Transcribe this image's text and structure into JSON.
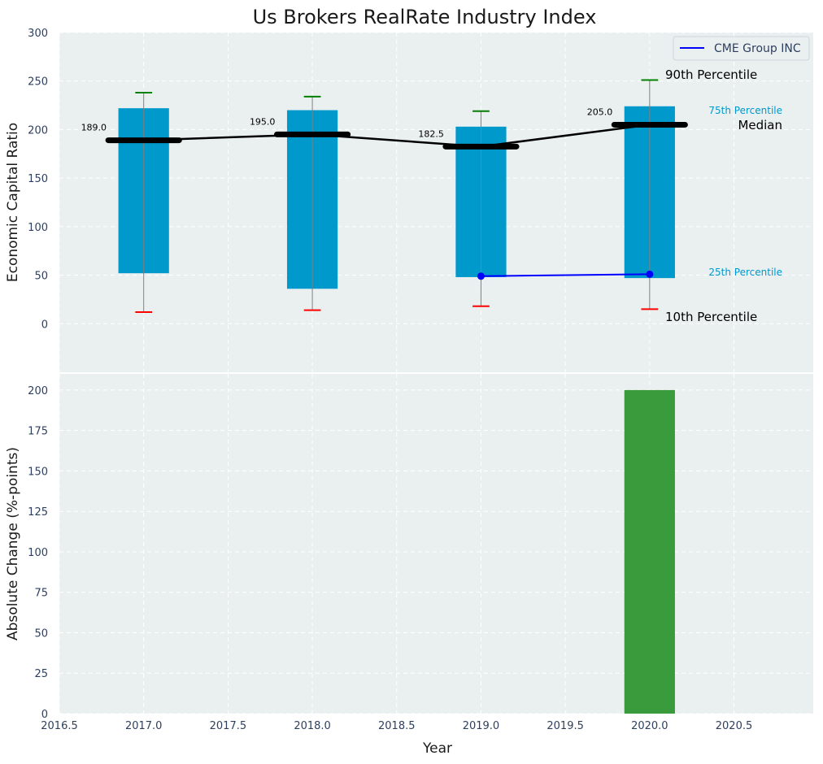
{
  "chart_data": [
    {
      "type": "box",
      "title": "Us Brokers RealRate Industry Index",
      "xlabel": "",
      "ylabel": "Economic Capital Ratio",
      "ylim": [
        -50,
        300
      ],
      "yticks": [
        0,
        50,
        100,
        150,
        200,
        250,
        300
      ],
      "grid": true,
      "legend_position": "top-right",
      "boxes": [
        {
          "x": 2017,
          "p10": 12,
          "p25": 52,
          "median": 189,
          "p75": 222,
          "p90": 238,
          "median_label": "189.0"
        },
        {
          "x": 2018,
          "p10": 14,
          "p25": 36,
          "median": 195,
          "p75": 220,
          "p90": 234,
          "median_label": "195.0"
        },
        {
          "x": 2019,
          "p10": 18,
          "p25": 48,
          "median": 182.5,
          "p75": 203,
          "p90": 219,
          "median_label": "182.5"
        },
        {
          "x": 2020,
          "p10": 15,
          "p25": 47,
          "median": 205,
          "p75": 224,
          "p90": 251,
          "median_label": "205.0"
        }
      ],
      "series": [
        {
          "name": "CME Group INC",
          "color": "#0000ff",
          "x": [
            2019,
            2020
          ],
          "values": [
            49,
            51
          ]
        }
      ],
      "annotations": {
        "p90": "90th Percentile",
        "p75": "75th Percentile",
        "median": "Median",
        "p25": "25th Percentile",
        "p10": "10th Percentile"
      }
    },
    {
      "type": "bar",
      "xlabel": "Year",
      "ylabel": "Absolute Change (%-points)",
      "ylim": [
        0,
        210
      ],
      "yticks": [
        0,
        25,
        50,
        75,
        100,
        125,
        150,
        175,
        200
      ],
      "grid": true,
      "categories": [
        2020
      ],
      "values": [
        200
      ],
      "color": "#3a9b3c"
    }
  ],
  "x_axis": {
    "xlim": [
      2016.5,
      2020.97
    ],
    "ticks": [
      2016.5,
      2017.0,
      2017.5,
      2018.0,
      2018.5,
      2019.0,
      2019.5,
      2020.0,
      2020.5
    ],
    "tick_labels": [
      "2016.5",
      "2017.0",
      "2017.5",
      "2018.0",
      "2018.5",
      "2019.0",
      "2019.5",
      "2020.0",
      "2020.5"
    ]
  },
  "colors": {
    "panel_bg": "#eaeff0",
    "box_fill": "#0099cc",
    "median_line": "#000000",
    "whisker_top": "#008000",
    "whisker_bottom": "#ff0000",
    "whisker_line": "#808080",
    "bar": "#3a9b3c",
    "company": "#0000ff"
  }
}
